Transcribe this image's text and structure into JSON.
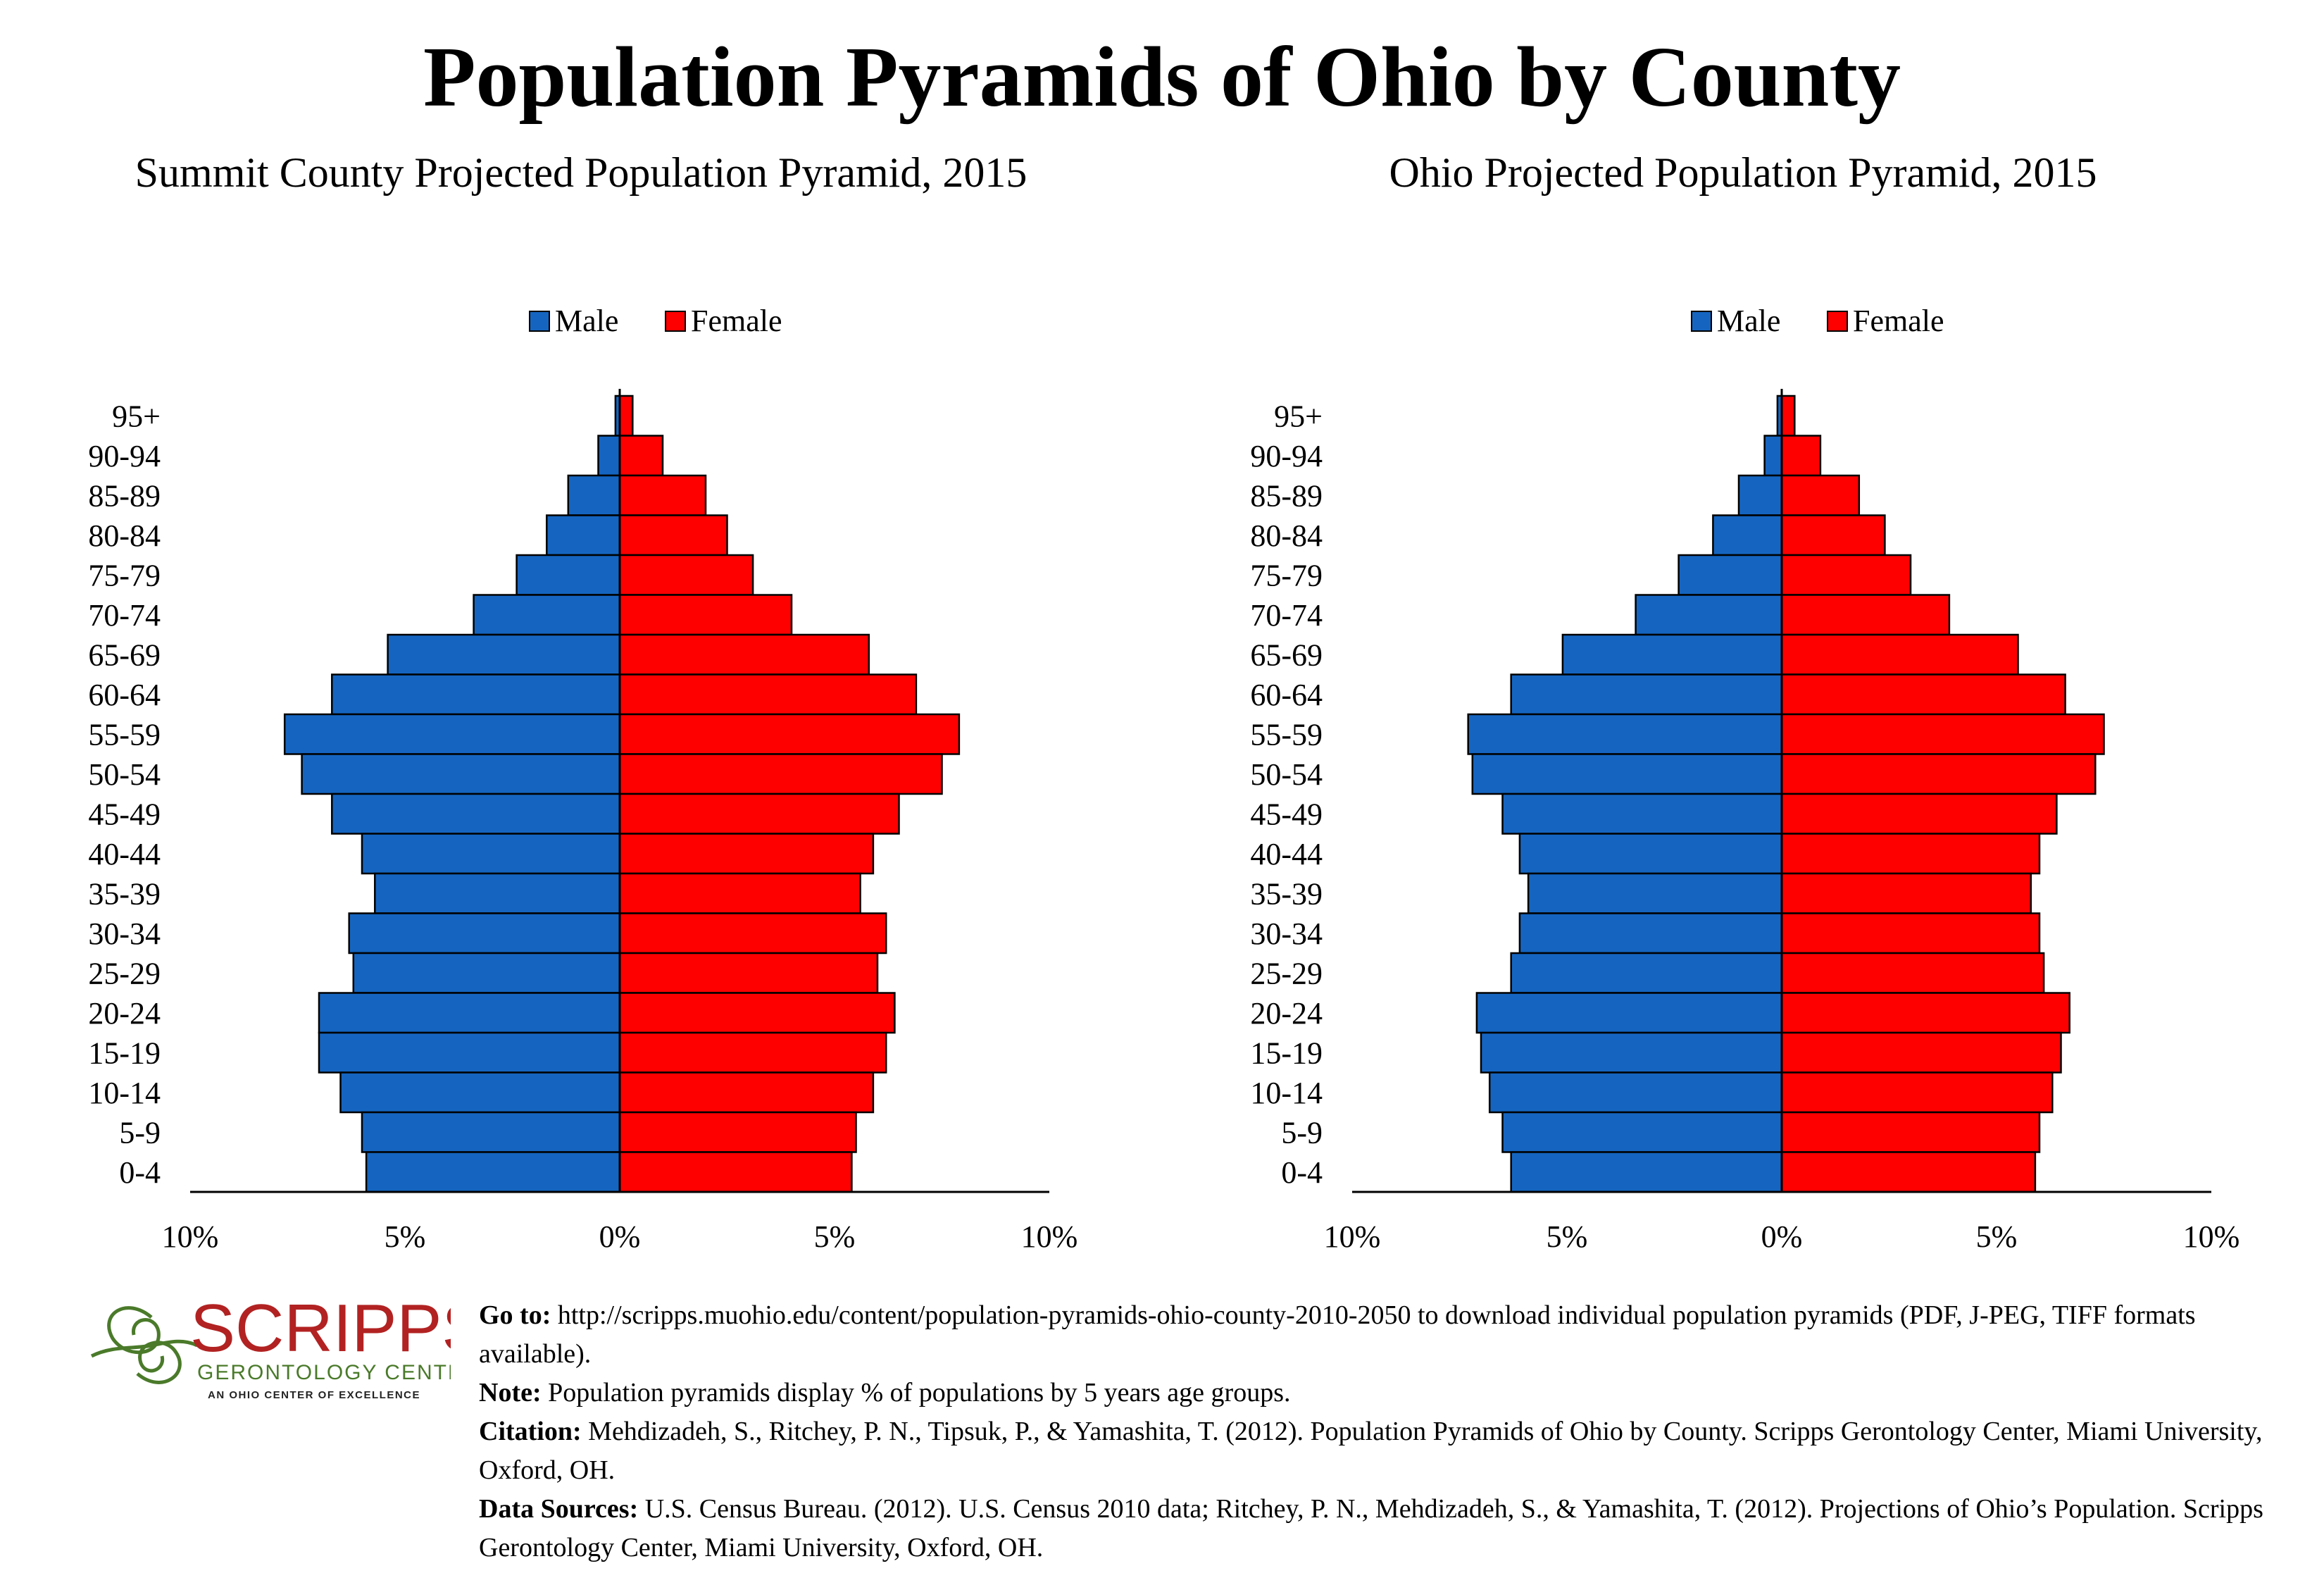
{
  "title": "Population Pyramids of Ohio by County",
  "chart_data": [
    {
      "type": "bar",
      "orientation": "horizontal-pyramid",
      "title": "Summit County Projected Population Pyramid, 2015",
      "categories": [
        "95+",
        "90-94",
        "85-89",
        "80-84",
        "75-79",
        "70-74",
        "65-69",
        "60-64",
        "55-59",
        "50-54",
        "45-49",
        "40-44",
        "35-39",
        "30-34",
        "25-29",
        "20-24",
        "15-19",
        "10-14",
        "5-9",
        "0-4"
      ],
      "series": [
        {
          "name": "Male",
          "color": "#1565C0",
          "values": [
            0.1,
            0.5,
            1.2,
            1.7,
            2.4,
            3.4,
            5.4,
            6.7,
            7.8,
            7.4,
            6.7,
            6.0,
            5.7,
            6.3,
            6.2,
            7.0,
            7.0,
            6.5,
            6.0,
            5.9
          ]
        },
        {
          "name": "Female",
          "color": "#FF0000",
          "values": [
            0.3,
            1.0,
            2.0,
            2.5,
            3.1,
            4.0,
            5.8,
            6.9,
            7.9,
            7.5,
            6.5,
            5.9,
            5.6,
            6.2,
            6.0,
            6.4,
            6.2,
            5.9,
            5.5,
            5.4
          ]
        }
      ],
      "xlim": [
        -10,
        10
      ],
      "xticks": [
        "10%",
        "5%",
        "0%",
        "5%",
        "10%"
      ],
      "legend": "top-center",
      "grid": false
    },
    {
      "type": "bar",
      "orientation": "horizontal-pyramid",
      "title": "Ohio Projected Population Pyramid, 2015",
      "categories": [
        "95+",
        "90-94",
        "85-89",
        "80-84",
        "75-79",
        "70-74",
        "65-69",
        "60-64",
        "55-59",
        "50-54",
        "45-49",
        "40-44",
        "35-39",
        "30-34",
        "25-29",
        "20-24",
        "15-19",
        "10-14",
        "5-9",
        "0-4"
      ],
      "series": [
        {
          "name": "Male",
          "color": "#1565C0",
          "values": [
            0.1,
            0.4,
            1.0,
            1.6,
            2.4,
            3.4,
            5.1,
            6.3,
            7.3,
            7.2,
            6.5,
            6.1,
            5.9,
            6.1,
            6.3,
            7.1,
            7.0,
            6.8,
            6.5,
            6.3
          ]
        },
        {
          "name": "Female",
          "color": "#FF0000",
          "values": [
            0.3,
            0.9,
            1.8,
            2.4,
            3.0,
            3.9,
            5.5,
            6.6,
            7.5,
            7.3,
            6.4,
            6.0,
            5.8,
            6.0,
            6.1,
            6.7,
            6.5,
            6.3,
            6.0,
            5.9
          ]
        }
      ],
      "xlim": [
        -10,
        10
      ],
      "xticks": [
        "10%",
        "5%",
        "0%",
        "5%",
        "10%"
      ],
      "legend": "top-center",
      "grid": false
    }
  ],
  "logo": {
    "name": "SCRIPPS",
    "line2": "GERONTOLOGY CENTER",
    "line3": "AN OHIO CENTER OF EXCELLENCE",
    "color_red": "#B22222",
    "color_green": "#4A7A2A"
  },
  "footer": {
    "goto_label": "Go to:",
    "goto_text": " http://scripps.muohio.edu/content/population-pyramids-ohio-county-2010-2050 to download individual population pyramids (PDF, J-PEG, TIFF formats available).",
    "note_label": "Note:",
    "note_text": " Population pyramids display % of populations by 5 years age groups.",
    "citation_label": "Citation:",
    "citation_text": " Mehdizadeh, S., Ritchey, P. N., Tipsuk, P., & Yamashita, T. (2012). Population Pyramids of Ohio by County. Scripps Gerontology Center, Miami University, Oxford, OH.",
    "sources_label": "Data Sources:",
    "sources_text": " U.S. Census Bureau. (2012). U.S. Census 2010 data; Ritchey, P. N., Mehdizadeh, S., & Yamashita, T. (2012). Projections of Ohio’s Population. Scripps Gerontology Center, Miami University, Oxford, OH."
  }
}
